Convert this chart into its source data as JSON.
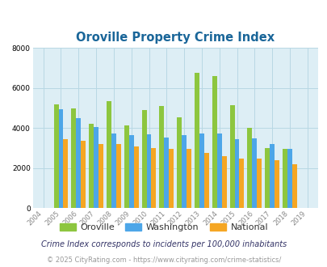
{
  "title": "Oroville Property Crime Index",
  "years": [
    "04",
    "05",
    "06",
    "07",
    "08",
    "09",
    "10",
    "11",
    "12",
    "13",
    "14",
    "15",
    "16",
    "17",
    "18",
    "19"
  ],
  "full_years": [
    2004,
    2005,
    2006,
    2007,
    2008,
    2009,
    2010,
    2011,
    2012,
    2013,
    2014,
    2015,
    2016,
    2017,
    2018,
    2019
  ],
  "oroville": [
    0,
    5200,
    5000,
    4200,
    5350,
    4150,
    4900,
    5100,
    4550,
    6750,
    6600,
    5150,
    4000,
    3000,
    2950,
    0
  ],
  "washington": [
    0,
    4950,
    4500,
    4050,
    3750,
    3650,
    3700,
    3550,
    3650,
    3750,
    3750,
    3450,
    3500,
    3200,
    2950,
    0
  ],
  "national": [
    0,
    3450,
    3350,
    3200,
    3200,
    3100,
    3000,
    2950,
    2950,
    2750,
    2600,
    2500,
    2500,
    2400,
    2200,
    0
  ],
  "ylim": [
    0,
    8000
  ],
  "yticks": [
    0,
    2000,
    4000,
    6000,
    8000
  ],
  "bar_width": 0.27,
  "colors": {
    "oroville": "#8dc63f",
    "washington": "#4da6e8",
    "national": "#f5a623"
  },
  "bg_color": "#ddeef5",
  "grid_color": "#b8d8e4",
  "title_color": "#1a6699",
  "legend_labels": [
    "Oroville",
    "Washington",
    "National"
  ],
  "footnote1": "Crime Index corresponds to incidents per 100,000 inhabitants",
  "footnote2": "© 2025 CityRating.com - https://www.cityrating.com/crime-statistics/",
  "footnote1_color": "#333366",
  "footnote2_color": "#999999"
}
